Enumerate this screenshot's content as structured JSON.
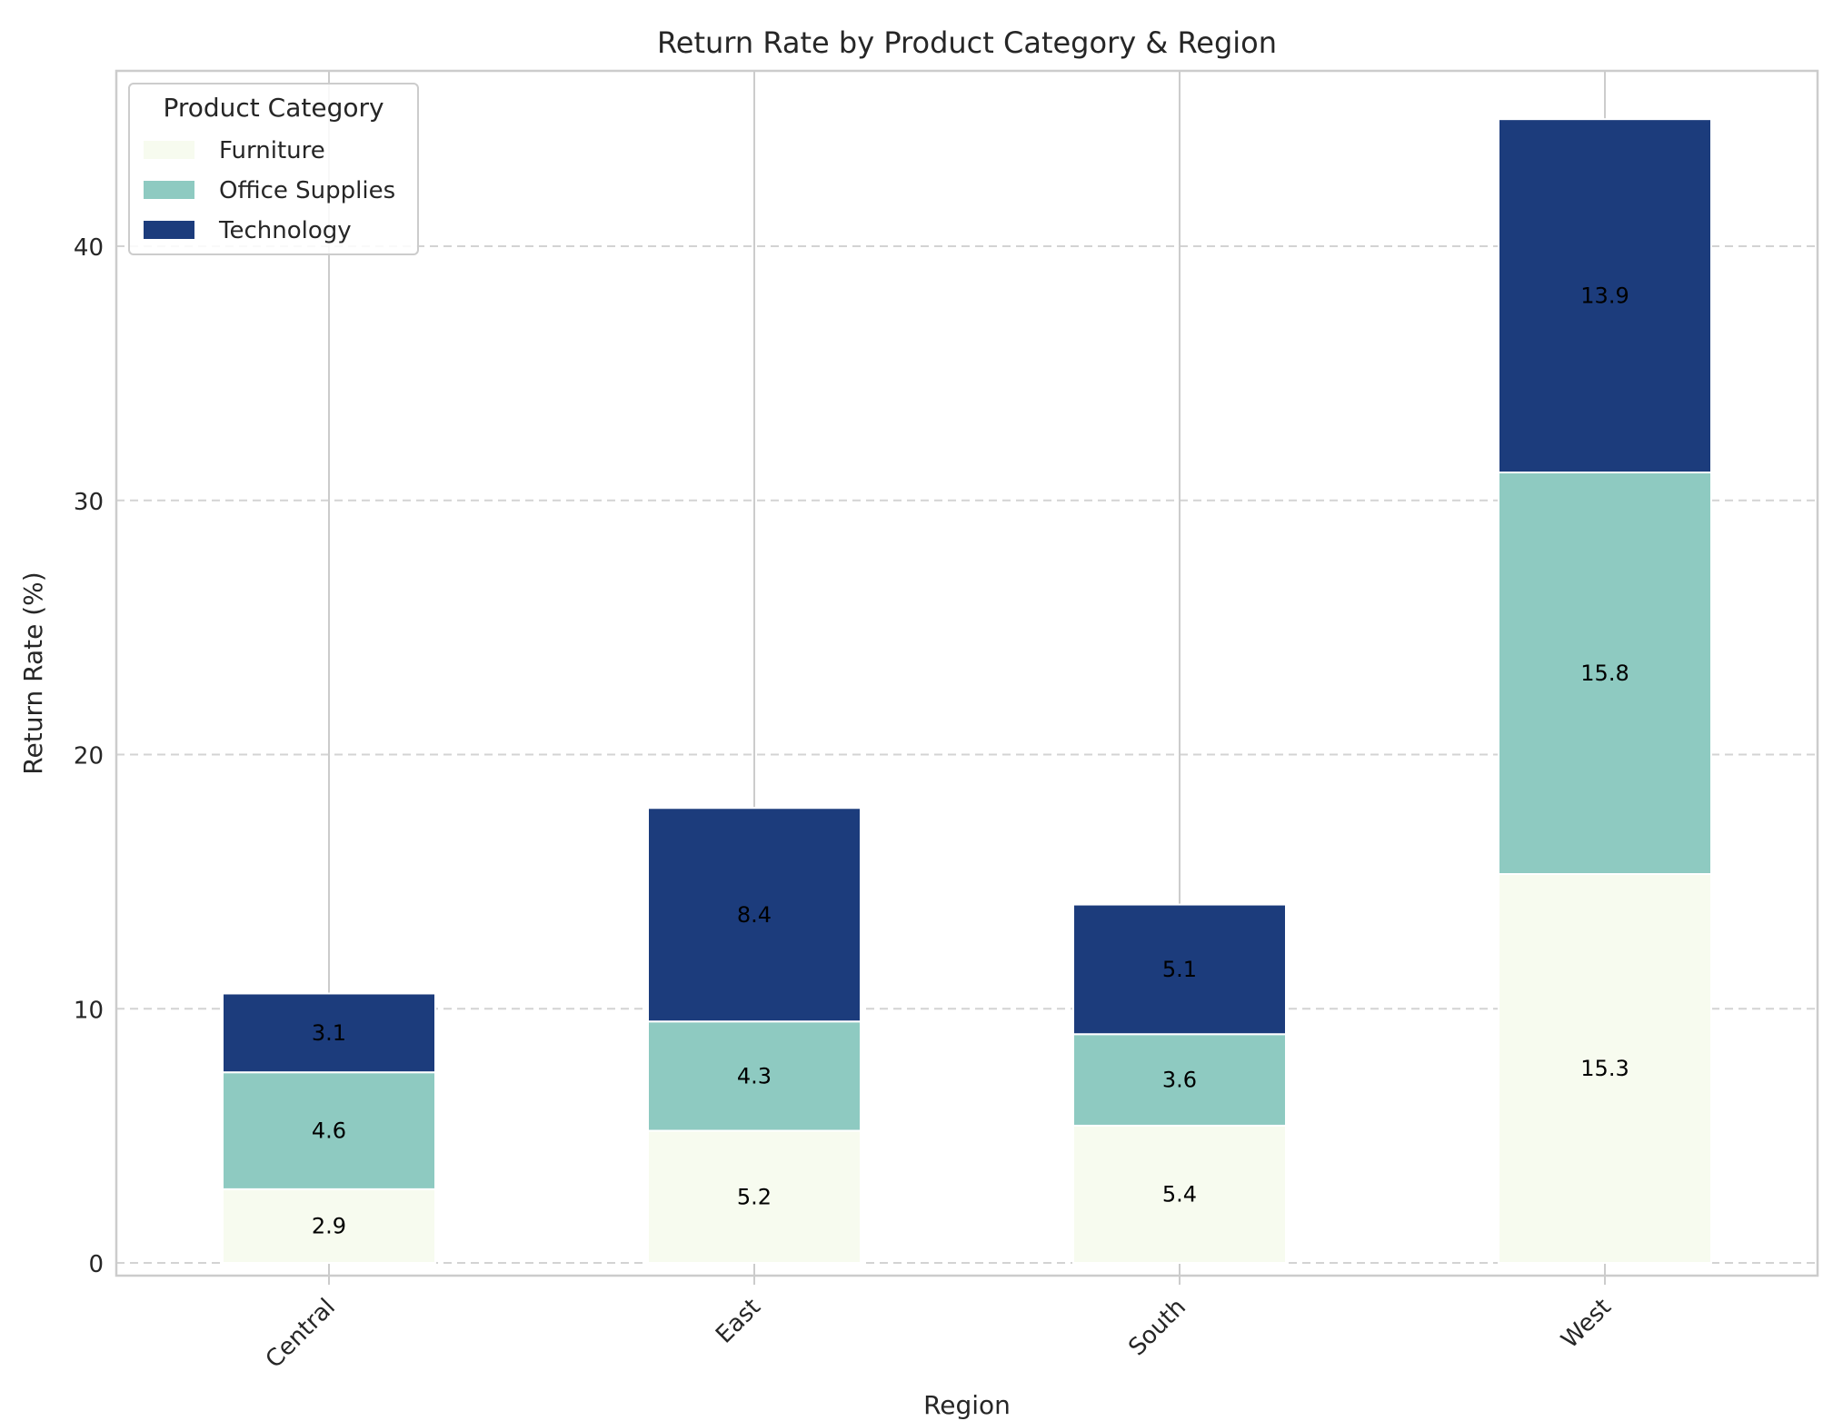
{
  "chart_data": {
    "type": "bar",
    "stacked": true,
    "title": "Return Rate by Product Category & Region",
    "xlabel": "Region",
    "ylabel": "Return Rate (%)",
    "categories": [
      "Central",
      "East",
      "South",
      "West"
    ],
    "series": [
      {
        "name": "Furniture",
        "values": [
          2.9,
          5.2,
          5.4,
          15.3
        ],
        "color": "#f7fbef"
      },
      {
        "name": "Office Supplies",
        "values": [
          4.6,
          4.3,
          3.6,
          15.8
        ],
        "color": "#8ecac1"
      },
      {
        "name": "Technology",
        "values": [
          3.1,
          8.4,
          5.1,
          13.9
        ],
        "color": "#1c3c7c"
      }
    ],
    "data_labels": true,
    "yticks": [
      0,
      10,
      20,
      30,
      40
    ],
    "ylim": [
      -0.5,
      46.9
    ],
    "grid": {
      "y": "dashed",
      "x": "solid"
    },
    "legend": {
      "title": "Product Category",
      "placement": "top-left"
    },
    "xtick_rotation": 45
  }
}
